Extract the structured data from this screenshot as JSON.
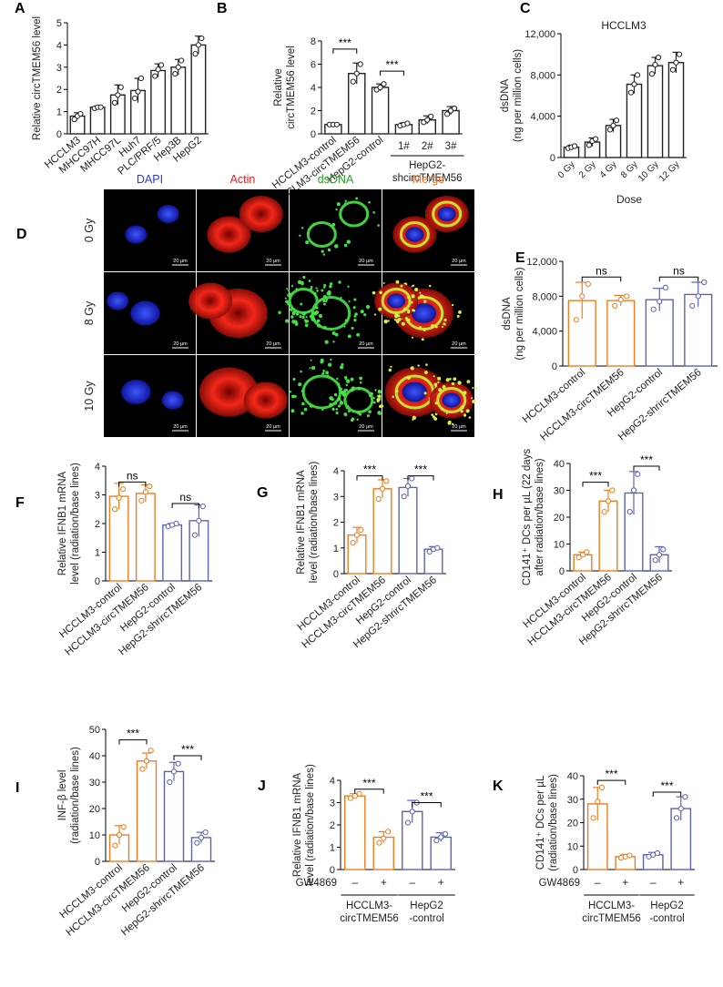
{
  "colors": {
    "black": "#222222",
    "orange": "#ee7d1f",
    "blue": "#5b63b5",
    "dapi": "#2a3ad0",
    "actin": "#e02020",
    "dsdna": "#2a9e2a",
    "merge": "#e8702a"
  },
  "panels": [
    {
      "id": "A",
      "letter": "A",
      "type": "bar",
      "ylabel": [
        "Relative circTMEM56 level"
      ],
      "ylim": [
        0,
        5
      ],
      "yticks": [
        0,
        1,
        2,
        3,
        4,
        5
      ],
      "categories": [
        "HCCLM3",
        "MHCC97H",
        "MHCC97L",
        "Huh7",
        "PLC/PRF/5",
        "Hep3B",
        "HepG2"
      ],
      "values": [
        0.8,
        1.2,
        1.75,
        1.95,
        2.85,
        3.0,
        4.0
      ],
      "errors": [
        0.15,
        0.05,
        0.45,
        0.55,
        0.3,
        0.35,
        0.4
      ],
      "points": [
        [
          0.65,
          0.8,
          0.9
        ],
        [
          1.15,
          1.2,
          1.2
        ],
        [
          1.4,
          1.75,
          2.1
        ],
        [
          1.6,
          1.9,
          2.5
        ],
        [
          2.6,
          2.9,
          3.1
        ],
        [
          2.7,
          3.0,
          3.3
        ],
        [
          3.6,
          4.0,
          4.3
        ]
      ],
      "bar_colors": [
        "black",
        "black",
        "black",
        "black",
        "black",
        "black",
        "black"
      ]
    },
    {
      "id": "B",
      "letter": "B",
      "type": "bar",
      "ylabel": [
        "Relative",
        "circTMEM56 level"
      ],
      "ylim": [
        0,
        8
      ],
      "yticks": [
        0,
        2,
        4,
        6,
        8
      ],
      "categories": [
        "HCCLM3-control",
        "HCCLM3-circTMEM56",
        "HepG2-control",
        "1#",
        "2#",
        "3#"
      ],
      "values": [
        0.8,
        5.2,
        4.0,
        0.8,
        1.2,
        2.0
      ],
      "errors": [
        0.05,
        0.9,
        0.3,
        0.15,
        0.35,
        0.35
      ],
      "points": [
        [
          0.8,
          0.8,
          0.8
        ],
        [
          4.5,
          5.2,
          6.0
        ],
        [
          3.8,
          4.0,
          4.3
        ],
        [
          0.7,
          0.8,
          0.9
        ],
        [
          1.0,
          1.2,
          1.5
        ],
        [
          1.7,
          2.0,
          2.2
        ]
      ],
      "bar_colors": [
        "black",
        "black",
        "black",
        "black",
        "black",
        "black"
      ],
      "group_label": [
        "HepG2-",
        "shcircTMEM56"
      ],
      "sig": [
        {
          "a": 0,
          "b": 1,
          "y": 7.3,
          "label": "***"
        },
        {
          "a": 2,
          "b": 3,
          "y": 5.4,
          "label": "***"
        }
      ]
    },
    {
      "id": "C",
      "letter": "C",
      "type": "bar",
      "title": "HCCLM3",
      "ylabel": [
        "dsDNA",
        "(ng per million cells)"
      ],
      "xlabel": "Dose",
      "ylim": [
        0,
        12000
      ],
      "yticks": [
        0,
        4000,
        8000,
        12000
      ],
      "ytick_labels": [
        "0",
        "4,000",
        "8,000",
        "12,000"
      ],
      "categories": [
        "0 Gy",
        "2 Gy",
        "4 Gy",
        "8 Gy",
        "10 Gy",
        "12 Gy"
      ],
      "values": [
        1000,
        1500,
        3100,
        7100,
        8900,
        9200
      ],
      "errors": [
        200,
        400,
        600,
        900,
        800,
        1000
      ],
      "points": [
        [
          900,
          1000,
          1100
        ],
        [
          1200,
          1600,
          1800
        ],
        [
          2700,
          3100,
          3600
        ],
        [
          6300,
          7100,
          8000
        ],
        [
          8100,
          9000,
          9700
        ],
        [
          8500,
          9200,
          10000
        ]
      ],
      "bar_colors": [
        "black",
        "black",
        "black",
        "black",
        "black",
        "black"
      ]
    },
    {
      "id": "E",
      "letter": "E",
      "type": "bar",
      "ylabel": [
        "dsDNA",
        "(ng per million cells)"
      ],
      "ylim": [
        0,
        12000
      ],
      "yticks": [
        0,
        4000,
        8000,
        12000
      ],
      "ytick_labels": [
        "0",
        "4,000",
        "8,000",
        "12,000"
      ],
      "categories": [
        "HCCLM3-control",
        "HCCLM3-circTMEM56",
        "HepG2-control",
        "HepG2-shrircTMEM56"
      ],
      "values": [
        7500,
        7500,
        7600,
        8200
      ],
      "errors": [
        2100,
        600,
        1300,
        1400
      ],
      "points": [
        [
          5300,
          8000,
          9400
        ],
        [
          6900,
          7600,
          8000
        ],
        [
          6500,
          7400,
          9000
        ],
        [
          6900,
          8000,
          9600
        ]
      ],
      "bar_colors": [
        "orange",
        "orange",
        "blue",
        "blue"
      ],
      "sig": [
        {
          "a": 0,
          "b": 1,
          "y": 10200,
          "label": "ns"
        },
        {
          "a": 2,
          "b": 3,
          "y": 10200,
          "label": "ns"
        }
      ]
    },
    {
      "id": "F",
      "letter": "F",
      "type": "bar",
      "ylabel": [
        "Relative IFNB1 mRNA",
        "level (radiation/base lines)"
      ],
      "ylim": [
        0,
        4
      ],
      "yticks": [
        0,
        1,
        2,
        3,
        4
      ],
      "categories": [
        "HCCLM3-control",
        "HCCLM3-circTMEM56",
        "HepG2-control",
        "HepG2-shrircTMEM56"
      ],
      "values": [
        2.95,
        3.05,
        1.95,
        2.1
      ],
      "errors": [
        0.45,
        0.3,
        0.05,
        0.55
      ],
      "points": [
        [
          2.5,
          2.9,
          3.2
        ],
        [
          2.8,
          3.1,
          3.3
        ],
        [
          1.9,
          1.95,
          2.0
        ],
        [
          1.6,
          2.1,
          2.6
        ]
      ],
      "bar_colors": [
        "orange",
        "orange",
        "blue",
        "blue"
      ],
      "sig": [
        {
          "a": 0,
          "b": 1,
          "y": 3.45,
          "label": "ns"
        },
        {
          "a": 2,
          "b": 3,
          "y": 2.7,
          "label": "ns"
        }
      ]
    },
    {
      "id": "G",
      "letter": "G",
      "type": "bar",
      "ylabel": [
        "Relative IFNB1 mRNA",
        "level (radiation/base lines)"
      ],
      "ylim": [
        0,
        4
      ],
      "yticks": [
        0,
        1,
        2,
        3,
        4
      ],
      "categories": [
        "HCCLM3-control",
        "HCCLM3-circTMEM56",
        "HepG2-control",
        "HepG2-shrircTMEM56"
      ],
      "values": [
        1.5,
        3.3,
        3.35,
        0.95
      ],
      "errors": [
        0.3,
        0.35,
        0.35,
        0.1
      ],
      "points": [
        [
          1.2,
          1.5,
          1.7
        ],
        [
          2.9,
          3.3,
          3.6
        ],
        [
          3.0,
          3.4,
          3.7
        ],
        [
          0.85,
          0.95,
          1.0
        ]
      ],
      "bar_colors": [
        "orange",
        "orange",
        "blue",
        "blue"
      ],
      "sig": [
        {
          "a": 0,
          "b": 1,
          "y": 3.8,
          "label": "***"
        },
        {
          "a": 2,
          "b": 3,
          "y": 3.8,
          "label": "***"
        }
      ]
    },
    {
      "id": "H",
      "letter": "H",
      "type": "bar",
      "ylabel": [
        "CD141⁺ DCs per µL (22 days",
        "after radiation/base lines)"
      ],
      "ylim": [
        0,
        40
      ],
      "yticks": [
        0,
        10,
        20,
        30,
        40
      ],
      "categories": [
        "HCCLM3-control",
        "HCCLM3-circTMEM56",
        "HepG2-control",
        "HepG2-shrircTMEM56"
      ],
      "values": [
        6,
        26,
        29,
        6
      ],
      "errors": [
        1,
        4,
        8,
        3
      ],
      "points": [
        [
          5,
          6,
          7
        ],
        [
          22,
          26,
          30
        ],
        [
          22,
          30,
          36
        ],
        [
          4,
          6,
          8
        ]
      ],
      "bar_colors": [
        "orange",
        "orange",
        "blue",
        "blue"
      ],
      "sig": [
        {
          "a": 0,
          "b": 1,
          "y": 33,
          "label": "***"
        },
        {
          "a": 2,
          "b": 3,
          "y": 39,
          "label": "***"
        }
      ]
    },
    {
      "id": "I",
      "letter": "I",
      "type": "bar",
      "ylabel": [
        "INF-β level",
        "(radiation/base lines)"
      ],
      "ylim": [
        0,
        50
      ],
      "yticks": [
        0,
        10,
        20,
        30,
        40,
        50
      ],
      "categories": [
        "HCCLM3-control",
        "HCCLM3-circTMEM56",
        "HepG2-control",
        "HepG2-shrircTMEM56"
      ],
      "values": [
        10,
        38,
        34,
        9
      ],
      "errors": [
        3.5,
        3,
        3.5,
        2
      ],
      "points": [
        [
          6,
          10,
          13
        ],
        [
          35,
          38,
          42
        ],
        [
          30,
          34,
          37
        ],
        [
          7,
          9,
          11
        ]
      ],
      "bar_colors": [
        "orange",
        "orange",
        "blue",
        "blue"
      ],
      "sig": [
        {
          "a": 0,
          "b": 1,
          "y": 46,
          "label": "***"
        },
        {
          "a": 2,
          "b": 3,
          "y": 40,
          "label": "***"
        }
      ]
    },
    {
      "id": "J",
      "letter": "J",
      "type": "bar",
      "ylabel": [
        "Relative IFNB1 mRNA",
        "level (radiation/base lines)"
      ],
      "ylim": [
        0,
        4
      ],
      "yticks": [
        0,
        1,
        2,
        3,
        4
      ],
      "categories": [
        "–",
        "+",
        "–",
        "+"
      ],
      "values": [
        3.3,
        1.45,
        2.6,
        1.45
      ],
      "errors": [
        0.1,
        0.25,
        0.5,
        0.2
      ],
      "points": [
        [
          3.2,
          3.3,
          3.4
        ],
        [
          1.2,
          1.4,
          1.7
        ],
        [
          2.1,
          2.6,
          3.0
        ],
        [
          1.3,
          1.45,
          1.6
        ]
      ],
      "bar_colors": [
        "orange",
        "orange",
        "blue",
        "blue"
      ],
      "treatment_label": "GW4869",
      "group_labels": [
        [
          "HCCLM3-",
          "circTMEM56"
        ],
        [
          "HepG2",
          "-control"
        ]
      ],
      "sig": [
        {
          "a": 0,
          "b": 1,
          "y": 3.6,
          "label": "***"
        },
        {
          "a": 2,
          "b": 3,
          "y": 3.0,
          "label": "***"
        }
      ]
    },
    {
      "id": "K",
      "letter": "K",
      "type": "bar",
      "ylabel": [
        "CD141⁺ DCs per µL",
        "(radiation/base lines)"
      ],
      "ylim": [
        0,
        40
      ],
      "yticks": [
        0,
        10,
        20,
        30,
        40
      ],
      "categories": [
        "–",
        "+",
        "–",
        "+"
      ],
      "values": [
        28,
        5.5,
        6.3,
        26
      ],
      "errors": [
        7,
        1,
        1,
        5
      ],
      "points": [
        [
          22,
          29,
          35
        ],
        [
          5,
          5.5,
          6
        ],
        [
          5.5,
          6.3,
          7
        ],
        [
          22,
          26,
          31
        ]
      ],
      "bar_colors": [
        "orange",
        "orange",
        "blue",
        "blue"
      ],
      "treatment_label": "GW4869",
      "group_labels": [
        [
          "HCCLM3-",
          "circTMEM56"
        ],
        [
          "HepG2",
          "-control"
        ]
      ],
      "sig": [
        {
          "a": 0,
          "b": 1,
          "y": 38,
          "label": "***"
        },
        {
          "a": 2,
          "b": 3,
          "y": 33,
          "label": "***"
        }
      ]
    }
  ],
  "panel_d": {
    "letter": "D",
    "columns": [
      "DAPI",
      "Actin",
      "dsDNA",
      "Merge"
    ],
    "rows": [
      "0 Gy",
      "8 Gy",
      "10 Gy"
    ],
    "scale_bar": "20 µm"
  }
}
